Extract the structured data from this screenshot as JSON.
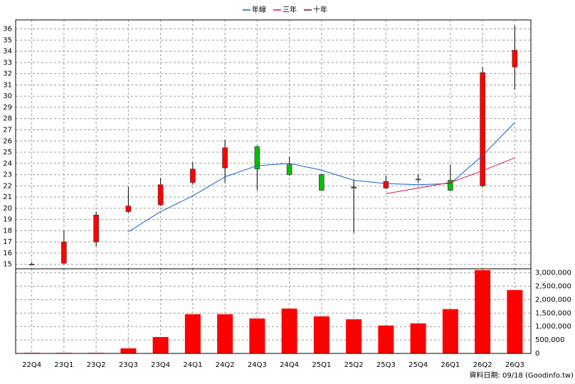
{
  "chart_data": [
    {
      "type": "candlestick",
      "open": [
        15.0,
        15.1,
        17.0,
        19.7,
        20.3,
        22.3,
        23.6,
        25.5,
        23.9,
        23.0,
        21.8,
        21.8,
        22.6,
        22.5,
        22.0,
        32.6
      ],
      "high": [
        15.2,
        18.0,
        19.7,
        21.9,
        22.7,
        24.1,
        26.1,
        25.6,
        24.6,
        23.1,
        22.5,
        22.9,
        23.0,
        23.9,
        32.6,
        36.3
      ],
      "low": [
        14.9,
        15.0,
        16.6,
        19.6,
        20.2,
        22.1,
        22.3,
        21.6,
        22.9,
        21.6,
        17.8,
        21.7,
        22.3,
        21.6,
        21.9,
        30.6
      ],
      "close": [
        15.0,
        17.0,
        19.4,
        20.2,
        22.1,
        23.5,
        25.4,
        23.5,
        23.0,
        21.6,
        21.9,
        22.4,
        22.6,
        21.6,
        32.1,
        34.1
      ],
      "up_color": "#ff0000",
      "down_color": "#00c000",
      "series": [
        {
          "name": "年線",
          "color": "#1060d0",
          "values": [
            null,
            null,
            null,
            17.9,
            19.7,
            21.1,
            22.8,
            23.8,
            24.0,
            23.4,
            22.5,
            22.2,
            22.1,
            22.2,
            24.7,
            27.65
          ]
        },
        {
          "name": "三年",
          "color": "#e0104a",
          "values": [
            null,
            null,
            null,
            null,
            null,
            null,
            null,
            null,
            null,
            null,
            null,
            21.3,
            21.8,
            22.3,
            23.35,
            24.5
          ]
        },
        {
          "name": "十年",
          "color": "#900050",
          "values": [
            null,
            null,
            null,
            null,
            null,
            null,
            null,
            null,
            null,
            null,
            null,
            null,
            null,
            null,
            null,
            null
          ]
        }
      ],
      "ylim": [
        14.6,
        36.8
      ],
      "yticks": [
        15,
        16,
        17,
        18,
        19,
        20,
        21,
        22,
        23,
        24,
        25,
        26,
        27,
        28,
        29,
        30,
        31,
        32,
        33,
        34,
        35,
        36
      ],
      "grid": true,
      "legend": "top"
    },
    {
      "type": "bar",
      "categories": [
        "22Q4",
        "23Q1",
        "23Q2",
        "23Q3",
        "23Q4",
        "24Q1",
        "24Q2",
        "24Q3",
        "24Q4",
        "25Q1",
        "25Q2",
        "25Q3",
        "25Q4",
        "26Q1",
        "26Q2",
        "26Q3"
      ],
      "values": [
        20000,
        20000,
        20000,
        190000,
        610000,
        1460000,
        1460000,
        1300000,
        1670000,
        1380000,
        1270000,
        1040000,
        1120000,
        1650000,
        3100000,
        2360000
      ],
      "color": "#ff0000",
      "ylim": [
        0,
        3150000
      ],
      "yticks": [
        0,
        {
          "value": 500000,
          "label": "500,000"
        },
        {
          "value": 1000000,
          "label": "1,000,000"
        },
        {
          "value": 1500000,
          "label": "1,500,000"
        },
        {
          "value": 2000000,
          "label": "2,000,000"
        },
        {
          "value": 2500000,
          "label": "2,500,000"
        },
        {
          "value": 3000000,
          "label": "3,000,000"
        }
      ],
      "grid": true
    }
  ],
  "footer": "資料日期: 09/18  (Goodinfo.tw)"
}
